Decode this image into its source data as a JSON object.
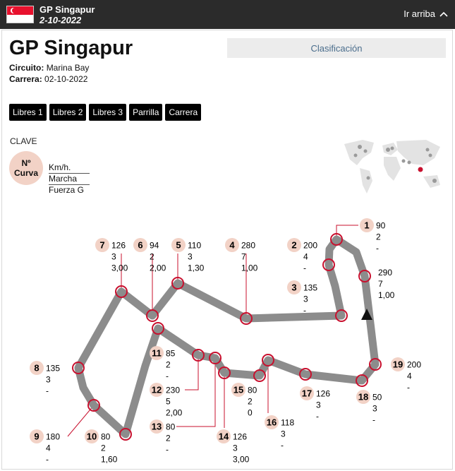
{
  "topbar": {
    "title": "GP Singapur",
    "date": "2-10-2022",
    "up_label": "Ir arriba"
  },
  "race": {
    "title": "GP Singapur",
    "circuit_label": "Circuito:",
    "circuit": "Marina Bay",
    "race_label": "Carrera:",
    "race_date": "02-10-2022"
  },
  "clasificacion_label": "Clasificación",
  "tabs": [
    "Libres 1",
    "Libres 2",
    "Libres 3",
    "Parrilla",
    "Carrera"
  ],
  "key": {
    "title": "CLAVE",
    "num": "Nº",
    "curve": "Curva",
    "speed": "Km/h.",
    "gear": "Marcha",
    "gforce": "Fuerza G"
  },
  "colors": {
    "topbar": "#2b2b2b",
    "badge": "#f2d2c6",
    "track": "#8c8c8c",
    "marker": "#c8102e"
  },
  "turns": [
    {
      "n": "1",
      "v": [
        "90",
        "2",
        "-"
      ]
    },
    {
      "n": "2",
      "v": [
        "200",
        "4",
        "-"
      ]
    },
    {
      "n": "3",
      "v": [
        "135",
        "3",
        "-"
      ]
    },
    {
      "n": "4",
      "v": [
        "280",
        "7",
        "1,00"
      ]
    },
    {
      "n": "5",
      "v": [
        "110",
        "3",
        "1,30"
      ]
    },
    {
      "n": "6",
      "v": [
        "94",
        "2",
        "2,00"
      ]
    },
    {
      "n": "7",
      "v": [
        "126",
        "3",
        "3,00"
      ]
    },
    {
      "n": "8",
      "v": [
        "135",
        "3",
        "-"
      ]
    },
    {
      "n": "9",
      "v": [
        "180",
        "4",
        "-"
      ]
    },
    {
      "n": "10",
      "v": [
        "80",
        "2",
        "1,60"
      ]
    },
    {
      "n": "11",
      "v": [
        "85",
        "2",
        "-"
      ]
    },
    {
      "n": "12",
      "v": [
        "230",
        "5",
        "2,00"
      ]
    },
    {
      "n": "13",
      "v": [
        "80",
        "2",
        "-"
      ]
    },
    {
      "n": "14",
      "v": [
        "126",
        "3",
        "3,00"
      ]
    },
    {
      "n": "15",
      "v": [
        "80",
        "2",
        "0"
      ]
    },
    {
      "n": "16",
      "v": [
        "118",
        "3",
        "-"
      ]
    },
    {
      "n": "17",
      "v": [
        "126",
        "3",
        "-"
      ]
    },
    {
      "n": "18",
      "v": [
        "50",
        "3",
        "-"
      ]
    },
    {
      "n": "19",
      "v": [
        "200",
        "4",
        "-"
      ]
    }
  ],
  "straight": {
    "v": [
      "290",
      "7",
      "1,00"
    ]
  }
}
